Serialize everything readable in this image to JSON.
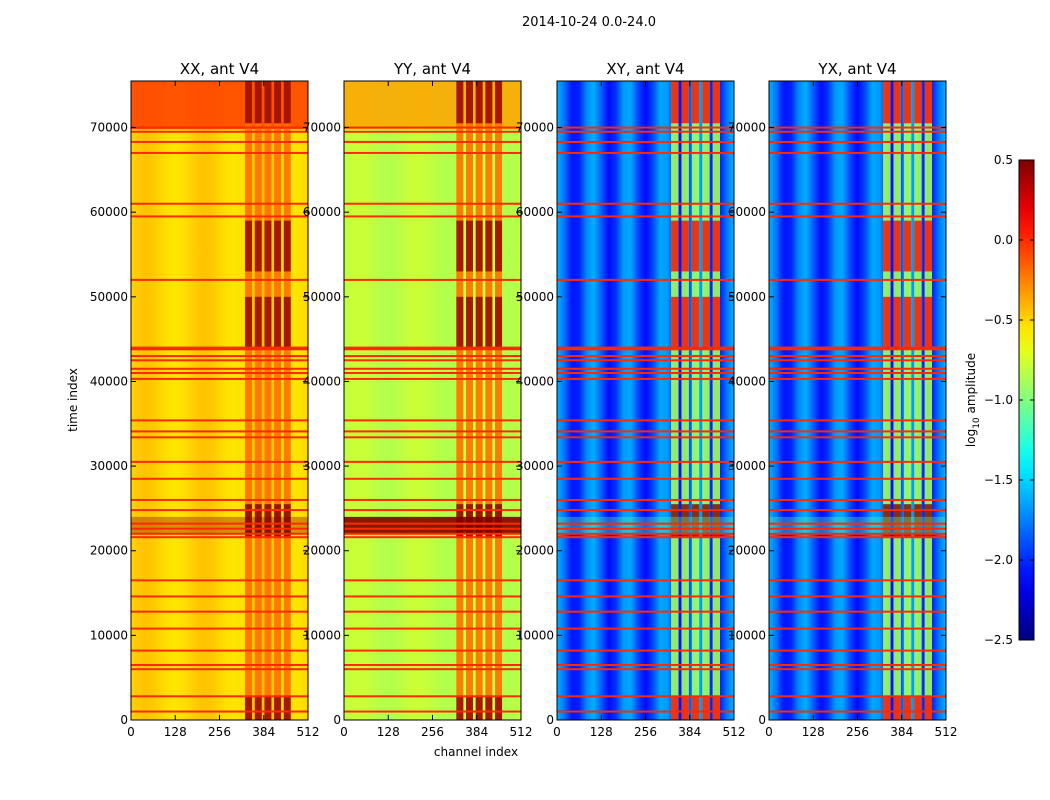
{
  "chart_data": {
    "type": "heatmap",
    "suptitle": "2014-10-24 0.0-24.0",
    "xlabel": "channel index",
    "ylabel": "time index",
    "xlim": [
      0,
      512
    ],
    "ylim": [
      0,
      75500
    ],
    "xticks": [
      0,
      128,
      256,
      384,
      512
    ],
    "yticks": [
      0,
      10000,
      20000,
      30000,
      40000,
      50000,
      60000,
      70000
    ],
    "colorbar": {
      "label_main": "log",
      "label_sub": "10",
      "label_rest": " amplitude",
      "vmin": -2.5,
      "vmax": 0.5,
      "ticks": [
        -2.5,
        -2.0,
        -1.5,
        -1.0,
        -0.5,
        0.0,
        0.5
      ],
      "colormap": "jet"
    },
    "panels": [
      {
        "title": "XX, ant V4",
        "base": [
          -0.55,
          -0.45
        ],
        "rfi_range": [
          330,
          470
        ],
        "rfi_level": 0.2,
        "variant": "auto",
        "partial_left_ticks": false
      },
      {
        "title": "YY, ant V4",
        "base": [
          -0.85,
          -0.78
        ],
        "rfi_range": [
          325,
          465
        ],
        "rfi_level": 0.2,
        "variant": "auto",
        "partial_left_ticks": false
      },
      {
        "title": "XY, ant V4",
        "base": [
          -2.1,
          -1.6
        ],
        "rfi_range": [
          330,
          480
        ],
        "rfi_level": 0.1,
        "variant": "cross",
        "partial_left_ticks": false
      },
      {
        "title": "YX, ant V4",
        "base": [
          -2.1,
          -1.6
        ],
        "rfi_range": [
          330,
          480
        ],
        "rfi_level": 0.1,
        "variant": "cross",
        "partial_left_ticks": true
      }
    ],
    "flagged_times": [
      1000,
      2800,
      6000,
      6500,
      8200,
      10800,
      12800,
      14600,
      16500,
      21600,
      22000,
      22600,
      23200,
      24800,
      26000,
      28500,
      30500,
      33400,
      34100,
      35400,
      40300,
      41000,
      41500,
      42500,
      43000,
      43800,
      44000,
      52000,
      59500,
      61000,
      67000,
      68300,
      69500,
      70000
    ],
    "flare_band": [
      21500,
      25500
    ]
  }
}
